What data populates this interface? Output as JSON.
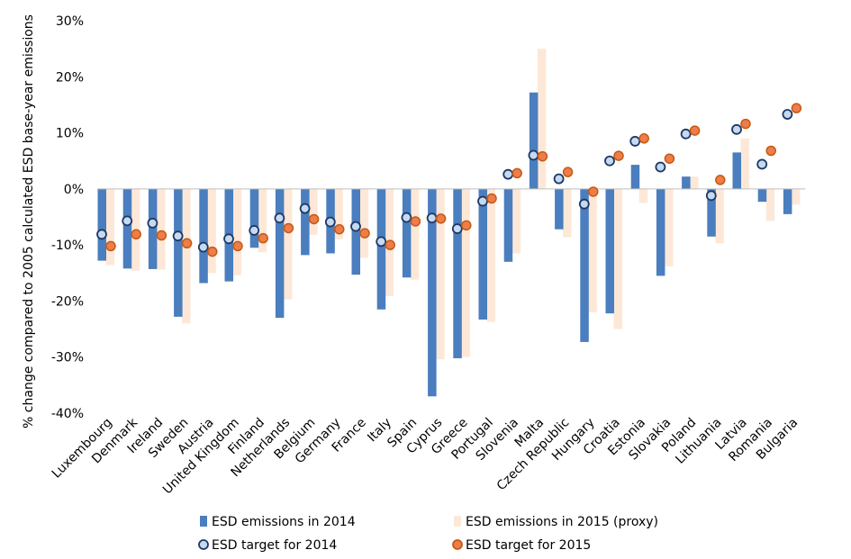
{
  "chart_data": {
    "type": "bar",
    "ylabel": "% change compared to 2005 calculated ESD base-year emissions",
    "ylim": [
      -40,
      30
    ],
    "yticks": [
      "30%",
      "20%",
      "10%",
      "0%",
      "-10%",
      "-20%",
      "-30%",
      "-40%"
    ],
    "ytick_values": [
      30,
      20,
      10,
      0,
      -10,
      -20,
      -30,
      -40
    ],
    "grid": false,
    "legend_position": "bottom",
    "categories": [
      "Luxembourg",
      "Denmark",
      "Ireland",
      "Sweden",
      "Austria",
      "United Kingdom",
      "Finland",
      "Netherlands",
      "Belgium",
      "Germany",
      "France",
      "Italy",
      "Spain",
      "Cyprus",
      "Greece",
      "Portugal",
      "Slovenia",
      "Malta",
      "Czech Republic",
      "Hungary",
      "Croatia",
      "Estonia",
      "Slovakia",
      "Poland",
      "Lithuania",
      "Latvia",
      "Romania",
      "Bulgaria"
    ],
    "series": [
      {
        "name": "ESD emissions in 2014",
        "kind": "bar",
        "color": "#4a7ebf",
        "values": [
          -12.8,
          -14.2,
          -14.3,
          -22.8,
          -16.8,
          -16.5,
          -10.5,
          -23.0,
          -11.8,
          -11.5,
          -15.3,
          -21.5,
          -15.8,
          -37.0,
          -30.2,
          -23.3,
          -13.0,
          17.2,
          -7.2,
          -27.3,
          -22.2,
          4.3,
          -15.5,
          2.2,
          -8.5,
          6.5,
          -2.3,
          -4.5
        ]
      },
      {
        "name": "ESD emissions in 2015 (proxy)",
        "kind": "bar",
        "color": "#fde8d8",
        "values": [
          -13.6,
          -14.6,
          -14.4,
          -24.0,
          -15.0,
          -15.4,
          -11.3,
          -19.7,
          -8.2,
          -9.0,
          -12.3,
          -19.1,
          -16.2,
          -30.4,
          -30.0,
          -23.7,
          -11.5,
          25.0,
          -8.6,
          -22.0,
          -25.0,
          -2.5,
          -13.8,
          2.2,
          -9.7,
          9.0,
          -5.7,
          -2.8
        ]
      },
      {
        "name": "ESD target for 2014",
        "kind": "marker",
        "color": "#c5d9f1",
        "stroke": "#1f3864",
        "values": [
          -8.1,
          -5.7,
          -6.1,
          -8.4,
          -10.4,
          -8.9,
          -7.4,
          -5.2,
          -3.5,
          -5.9,
          -6.7,
          -9.4,
          -5.1,
          -5.2,
          -7.1,
          -2.2,
          2.6,
          6.0,
          1.8,
          -2.7,
          5.0,
          8.5,
          3.9,
          9.8,
          -1.2,
          10.6,
          4.4,
          13.3
        ]
      },
      {
        "name": "ESD target for 2015",
        "kind": "marker",
        "color": "#ed7d4a",
        "stroke": "#c55a11",
        "values": [
          -10.2,
          -8.1,
          -8.3,
          -9.7,
          -11.2,
          -10.2,
          -8.8,
          -7.0,
          -5.4,
          -7.2,
          -7.9,
          -10.0,
          -5.8,
          -5.3,
          -6.5,
          -1.7,
          2.8,
          5.8,
          3.0,
          -0.5,
          5.9,
          9.0,
          5.4,
          10.4,
          1.6,
          11.6,
          6.8,
          14.4
        ]
      }
    ]
  }
}
